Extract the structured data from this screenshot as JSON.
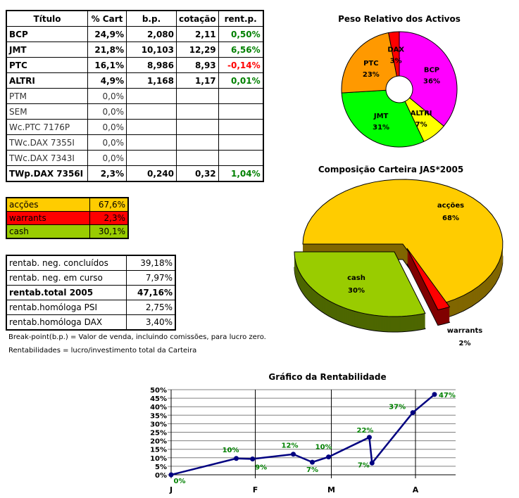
{
  "holdings": {
    "headers": [
      "Título",
      "% Cart",
      "b.p.",
      "cotação",
      "rent.p."
    ],
    "rows": [
      {
        "titulo": "BCP",
        "cart": "24,9%",
        "bp": "2,080",
        "cot": "2,11",
        "rent": "0,50%",
        "bold": true,
        "rent_color": "#008000"
      },
      {
        "titulo": "JMT",
        "cart": "21,8%",
        "bp": "10,103",
        "cot": "12,29",
        "rent": "6,56%",
        "bold": true,
        "rent_color": "#008000"
      },
      {
        "titulo": "PTC",
        "cart": "16,1%",
        "bp": "8,986",
        "cot": "8,93",
        "rent": "-0,14%",
        "bold": true,
        "rent_color": "#ff0000"
      },
      {
        "titulo": "ALTRI",
        "cart": "4,9%",
        "bp": "1,168",
        "cot": "1,17",
        "rent": "0,01%",
        "bold": true,
        "rent_color": "#008000"
      },
      {
        "titulo": "PTM",
        "cart": "0,0%",
        "bp": "",
        "cot": "",
        "rent": "",
        "bold": false
      },
      {
        "titulo": "SEM",
        "cart": "0,0%",
        "bp": "",
        "cot": "",
        "rent": "",
        "bold": false
      },
      {
        "titulo": "Wc.PTC 7176P",
        "cart": "0,0%",
        "bp": "",
        "cot": "",
        "rent": "",
        "bold": false
      },
      {
        "titulo": "TWc.DAX 7355I",
        "cart": "0,0%",
        "bp": "",
        "cot": "",
        "rent": "",
        "bold": false
      },
      {
        "titulo": "TWc.DAX 7343I",
        "cart": "0,0%",
        "bp": "",
        "cot": "",
        "rent": "",
        "bold": false
      },
      {
        "titulo": "TWp.DAX 7356I",
        "cart": "2,3%",
        "bp": "0,240",
        "cot": "0,32",
        "rent": "1,04%",
        "bold": true,
        "rent_color": "#008000"
      }
    ]
  },
  "composition": [
    {
      "label": "acções",
      "value": "67,6%",
      "color": "#ffcc00"
    },
    {
      "label": "warrants",
      "value": "2,3%",
      "color": "#ff0000"
    },
    {
      "label": "cash",
      "value": "30,1%",
      "color": "#99cc00"
    }
  ],
  "returns": [
    {
      "label": "rentab. neg. concluídos",
      "value": "39,18%",
      "bold": false
    },
    {
      "label": "rentab. neg. em curso",
      "value": "7,97%",
      "bold": false
    },
    {
      "label": "rentab.total 2005",
      "value": "47,16%",
      "bold": true
    },
    {
      "label": "rentab.homóloga PSI",
      "value": "2,75%",
      "bold": false
    },
    {
      "label": "rentab.homóloga DAX",
      "value": "3,40%",
      "bold": false
    }
  ],
  "notes": [
    "Break-point(b.p.) = Valor de venda, incluindo comissões, para lucro zero.",
    "Rentabilidades = lucro/investimento total da Carteira"
  ],
  "chart_data": [
    {
      "type": "pie",
      "title": "Peso Relativo dos Activos",
      "style": "doughnut",
      "slices": [
        {
          "label": "BCP",
          "value": 36,
          "text": "36%",
          "color": "#ff00ff"
        },
        {
          "label": "ALTRI",
          "value": 7,
          "text": "7%",
          "color": "#ffff00"
        },
        {
          "label": "JMT",
          "value": 31,
          "text": "31%",
          "color": "#00ff00"
        },
        {
          "label": "PTC",
          "value": 23,
          "text": "23%",
          "color": "#ff9900"
        },
        {
          "label": "DAX",
          "value": 3,
          "text": "3%",
          "color": "#ff0000"
        }
      ]
    },
    {
      "type": "pie",
      "title": "Composição Carteira JAS*2005",
      "style": "3d-exploded",
      "slices": [
        {
          "label": "acções",
          "value": 68,
          "text": "68%",
          "color": "#ffcc00",
          "side": "#806600"
        },
        {
          "label": "warrants",
          "value": 2,
          "text": "2%",
          "color": "#ff0000",
          "side": "#800000"
        },
        {
          "label": "cash",
          "value": 30,
          "text": "30%",
          "color": "#99cc00",
          "side": "#4d6600"
        }
      ]
    },
    {
      "type": "line",
      "title": "Gráfico da Rentabilidade",
      "x_ticks": [
        "J",
        "F",
        "M",
        "A"
      ],
      "x_tick_dates": [
        "2005-01-01",
        "2005-02-01",
        "2005-03-01",
        "2005-04-01"
      ],
      "ylim": [
        0,
        50
      ],
      "y_ticks": [
        "0%",
        "5%",
        "10%",
        "15%",
        "20%",
        "25%",
        "30%",
        "35%",
        "40%",
        "45%",
        "50%"
      ],
      "grid": true,
      "line_color": "#000080",
      "label_color": "#008000",
      "points": [
        {
          "x": "2005-01-01",
          "y": 0,
          "label": "0%"
        },
        {
          "x": "2005-01-25",
          "y": 9.6,
          "label": "10%"
        },
        {
          "x": "2005-01-31",
          "y": 9.3,
          "label": "9%"
        },
        {
          "x": "2005-02-15",
          "y": 12.1,
          "label": "12%"
        },
        {
          "x": "2005-02-22",
          "y": 7.4,
          "label": "7%"
        },
        {
          "x": "2005-02-28",
          "y": 10.5,
          "label": "10%"
        },
        {
          "x": "2005-03-15",
          "y": 22,
          "label": "22%"
        },
        {
          "x": "2005-03-16",
          "y": 6.9,
          "label": "7%"
        },
        {
          "x": "2005-03-31",
          "y": 36.5,
          "label": "37%"
        },
        {
          "x": "2005-04-08",
          "y": 47.2,
          "label": "47%"
        }
      ]
    }
  ]
}
